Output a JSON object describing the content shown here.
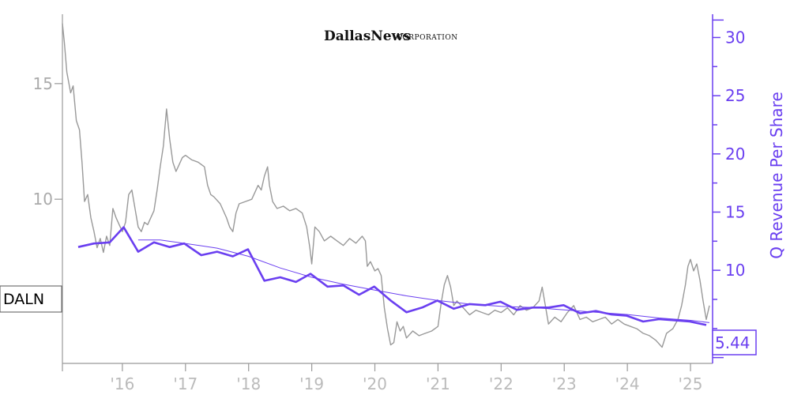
{
  "chart_data": {
    "type": "line",
    "logo": {
      "main": "DallasNews",
      "sub": "CORPORATION"
    },
    "ticker": "DALN",
    "ylabel_right": "Q Revenue Per Share",
    "last_value_label": "5.44",
    "x_ticks": [
      "'16",
      "'17",
      "'18",
      "'19",
      "'20",
      "'21",
      "'22",
      "'23",
      "'24",
      "'25"
    ],
    "x_tick_years": [
      2016,
      2017,
      2018,
      2019,
      2020,
      2021,
      2022,
      2023,
      2024,
      2025
    ],
    "xlim": [
      2015.05,
      2025.35
    ],
    "left_axis": {
      "ticks": [
        "10",
        "15"
      ],
      "tick_values": [
        10,
        15
      ],
      "ylim": [
        2.9,
        18.0
      ]
    },
    "right_axis": {
      "ticks": [
        "10",
        "15",
        "20",
        "25",
        "30"
      ],
      "tick_values": [
        10,
        15,
        20,
        25,
        30
      ],
      "ylim": [
        2.0,
        32.0
      ]
    },
    "colors": {
      "price": "#999999",
      "revenue": "#6a3ff0",
      "axis": "#999999"
    },
    "series": [
      {
        "name": "DALN",
        "axis": "left",
        "points": [
          [
            2015.05,
            17.6
          ],
          [
            2015.08,
            16.8
          ],
          [
            2015.12,
            15.5
          ],
          [
            2015.18,
            14.6
          ],
          [
            2015.22,
            14.9
          ],
          [
            2015.27,
            13.4
          ],
          [
            2015.32,
            13.0
          ],
          [
            2015.36,
            11.6
          ],
          [
            2015.4,
            9.9
          ],
          [
            2015.45,
            10.2
          ],
          [
            2015.5,
            9.2
          ],
          [
            2015.55,
            8.6
          ],
          [
            2015.6,
            7.9
          ],
          [
            2015.65,
            8.3
          ],
          [
            2015.7,
            7.7
          ],
          [
            2015.75,
            8.4
          ],
          [
            2015.8,
            8.0
          ],
          [
            2015.85,
            9.6
          ],
          [
            2015.9,
            9.2
          ],
          [
            2015.95,
            8.9
          ],
          [
            2016.0,
            8.6
          ],
          [
            2016.05,
            9.0
          ],
          [
            2016.1,
            10.2
          ],
          [
            2016.15,
            10.4
          ],
          [
            2016.2,
            9.6
          ],
          [
            2016.25,
            8.8
          ],
          [
            2016.3,
            8.6
          ],
          [
            2016.35,
            9.0
          ],
          [
            2016.4,
            8.9
          ],
          [
            2016.45,
            9.2
          ],
          [
            2016.5,
            9.5
          ],
          [
            2016.55,
            10.4
          ],
          [
            2016.6,
            11.4
          ],
          [
            2016.65,
            12.3
          ],
          [
            2016.7,
            13.9
          ],
          [
            2016.75,
            12.6
          ],
          [
            2016.8,
            11.6
          ],
          [
            2016.85,
            11.2
          ],
          [
            2016.9,
            11.5
          ],
          [
            2016.95,
            11.8
          ],
          [
            2017.0,
            11.9
          ],
          [
            2017.1,
            11.7
          ],
          [
            2017.2,
            11.6
          ],
          [
            2017.3,
            11.4
          ],
          [
            2017.35,
            10.6
          ],
          [
            2017.4,
            10.2
          ],
          [
            2017.45,
            10.1
          ],
          [
            2017.55,
            9.8
          ],
          [
            2017.65,
            9.2
          ],
          [
            2017.7,
            8.8
          ],
          [
            2017.75,
            8.6
          ],
          [
            2017.8,
            9.4
          ],
          [
            2017.85,
            9.8
          ],
          [
            2017.95,
            9.9
          ],
          [
            2018.05,
            10.0
          ],
          [
            2018.1,
            10.3
          ],
          [
            2018.15,
            10.6
          ],
          [
            2018.2,
            10.4
          ],
          [
            2018.25,
            11.0
          ],
          [
            2018.3,
            11.4
          ],
          [
            2018.33,
            10.6
          ],
          [
            2018.38,
            9.9
          ],
          [
            2018.45,
            9.6
          ],
          [
            2018.55,
            9.7
          ],
          [
            2018.65,
            9.5
          ],
          [
            2018.75,
            9.6
          ],
          [
            2018.85,
            9.4
          ],
          [
            2018.92,
            8.8
          ],
          [
            2018.97,
            7.9
          ],
          [
            2019.0,
            7.2
          ],
          [
            2019.05,
            8.8
          ],
          [
            2019.12,
            8.6
          ],
          [
            2019.2,
            8.2
          ],
          [
            2019.3,
            8.4
          ],
          [
            2019.4,
            8.2
          ],
          [
            2019.5,
            8.0
          ],
          [
            2019.6,
            8.3
          ],
          [
            2019.7,
            8.1
          ],
          [
            2019.8,
            8.4
          ],
          [
            2019.85,
            8.2
          ],
          [
            2019.88,
            7.1
          ],
          [
            2019.93,
            7.3
          ],
          [
            2020.0,
            6.9
          ],
          [
            2020.05,
            7.0
          ],
          [
            2020.1,
            6.7
          ],
          [
            2020.15,
            5.3
          ],
          [
            2020.2,
            4.4
          ],
          [
            2020.25,
            3.7
          ],
          [
            2020.3,
            3.8
          ],
          [
            2020.35,
            4.7
          ],
          [
            2020.4,
            4.3
          ],
          [
            2020.45,
            4.5
          ],
          [
            2020.5,
            4.0
          ],
          [
            2020.6,
            4.3
          ],
          [
            2020.7,
            4.1
          ],
          [
            2020.8,
            4.2
          ],
          [
            2020.9,
            4.3
          ],
          [
            2021.0,
            4.5
          ],
          [
            2021.05,
            5.5
          ],
          [
            2021.1,
            6.3
          ],
          [
            2021.15,
            6.7
          ],
          [
            2021.2,
            6.2
          ],
          [
            2021.25,
            5.4
          ],
          [
            2021.3,
            5.6
          ],
          [
            2021.4,
            5.3
          ],
          [
            2021.5,
            5.0
          ],
          [
            2021.6,
            5.2
          ],
          [
            2021.7,
            5.1
          ],
          [
            2021.8,
            5.0
          ],
          [
            2021.9,
            5.2
          ],
          [
            2022.0,
            5.1
          ],
          [
            2022.1,
            5.3
          ],
          [
            2022.2,
            5.0
          ],
          [
            2022.3,
            5.4
          ],
          [
            2022.4,
            5.2
          ],
          [
            2022.5,
            5.3
          ],
          [
            2022.6,
            5.6
          ],
          [
            2022.65,
            6.2
          ],
          [
            2022.7,
            5.4
          ],
          [
            2022.75,
            4.6
          ],
          [
            2022.85,
            4.9
          ],
          [
            2022.95,
            4.7
          ],
          [
            2023.05,
            5.1
          ],
          [
            2023.15,
            5.4
          ],
          [
            2023.25,
            4.8
          ],
          [
            2023.35,
            4.9
          ],
          [
            2023.45,
            4.7
          ],
          [
            2023.55,
            4.8
          ],
          [
            2023.65,
            4.9
          ],
          [
            2023.75,
            4.6
          ],
          [
            2023.85,
            4.8
          ],
          [
            2023.95,
            4.6
          ],
          [
            2024.05,
            4.5
          ],
          [
            2024.15,
            4.4
          ],
          [
            2024.25,
            4.2
          ],
          [
            2024.35,
            4.1
          ],
          [
            2024.45,
            3.9
          ],
          [
            2024.55,
            3.6
          ],
          [
            2024.62,
            4.2
          ],
          [
            2024.72,
            4.4
          ],
          [
            2024.8,
            4.8
          ],
          [
            2024.86,
            5.4
          ],
          [
            2024.92,
            6.3
          ],
          [
            2024.96,
            7.1
          ],
          [
            2025.0,
            7.4
          ],
          [
            2025.05,
            6.9
          ],
          [
            2025.1,
            7.2
          ],
          [
            2025.15,
            6.5
          ],
          [
            2025.2,
            5.6
          ],
          [
            2025.25,
            4.8
          ],
          [
            2025.3,
            5.4
          ]
        ]
      },
      {
        "name": "Q Revenue Per Share",
        "axis": "right",
        "points": [
          [
            2015.3,
            12.0
          ],
          [
            2015.55,
            12.3
          ],
          [
            2015.8,
            12.4
          ],
          [
            2016.02,
            13.7
          ],
          [
            2016.25,
            11.6
          ],
          [
            2016.5,
            12.4
          ],
          [
            2016.75,
            12.0
          ],
          [
            2016.98,
            12.3
          ],
          [
            2017.25,
            11.3
          ],
          [
            2017.5,
            11.6
          ],
          [
            2017.75,
            11.2
          ],
          [
            2017.99,
            11.8
          ],
          [
            2018.25,
            9.1
          ],
          [
            2018.5,
            9.4
          ],
          [
            2018.75,
            9.0
          ],
          [
            2018.98,
            9.7
          ],
          [
            2019.25,
            8.6
          ],
          [
            2019.5,
            8.7
          ],
          [
            2019.75,
            7.9
          ],
          [
            2019.99,
            8.6
          ],
          [
            2020.25,
            7.4
          ],
          [
            2020.5,
            6.4
          ],
          [
            2020.75,
            6.8
          ],
          [
            2020.99,
            7.4
          ],
          [
            2021.25,
            6.7
          ],
          [
            2021.5,
            7.1
          ],
          [
            2021.75,
            7.0
          ],
          [
            2021.99,
            7.3
          ],
          [
            2022.25,
            6.6
          ],
          [
            2022.5,
            6.8
          ],
          [
            2022.75,
            6.8
          ],
          [
            2022.99,
            7.0
          ],
          [
            2023.25,
            6.3
          ],
          [
            2023.5,
            6.5
          ],
          [
            2023.75,
            6.2
          ],
          [
            2023.99,
            6.1
          ],
          [
            2024.25,
            5.6
          ],
          [
            2024.5,
            5.8
          ],
          [
            2024.75,
            5.7
          ],
          [
            2024.99,
            5.6
          ],
          [
            2025.25,
            5.3
          ]
        ]
      },
      {
        "name": "Q Revenue Per Share trend",
        "axis": "right",
        "points": [
          [
            2016.25,
            12.6
          ],
          [
            2016.6,
            12.6
          ],
          [
            2017.0,
            12.3
          ],
          [
            2017.5,
            11.9
          ],
          [
            2018.0,
            11.2
          ],
          [
            2018.5,
            10.2
          ],
          [
            2019.0,
            9.4
          ],
          [
            2019.5,
            8.8
          ],
          [
            2020.0,
            8.3
          ],
          [
            2020.5,
            7.8
          ],
          [
            2021.0,
            7.4
          ],
          [
            2021.5,
            7.1
          ],
          [
            2022.0,
            6.9
          ],
          [
            2022.5,
            6.8
          ],
          [
            2023.0,
            6.6
          ],
          [
            2023.5,
            6.4
          ],
          [
            2024.0,
            6.2
          ],
          [
            2024.5,
            5.9
          ],
          [
            2025.0,
            5.7
          ],
          [
            2025.3,
            5.5
          ]
        ]
      }
    ]
  }
}
